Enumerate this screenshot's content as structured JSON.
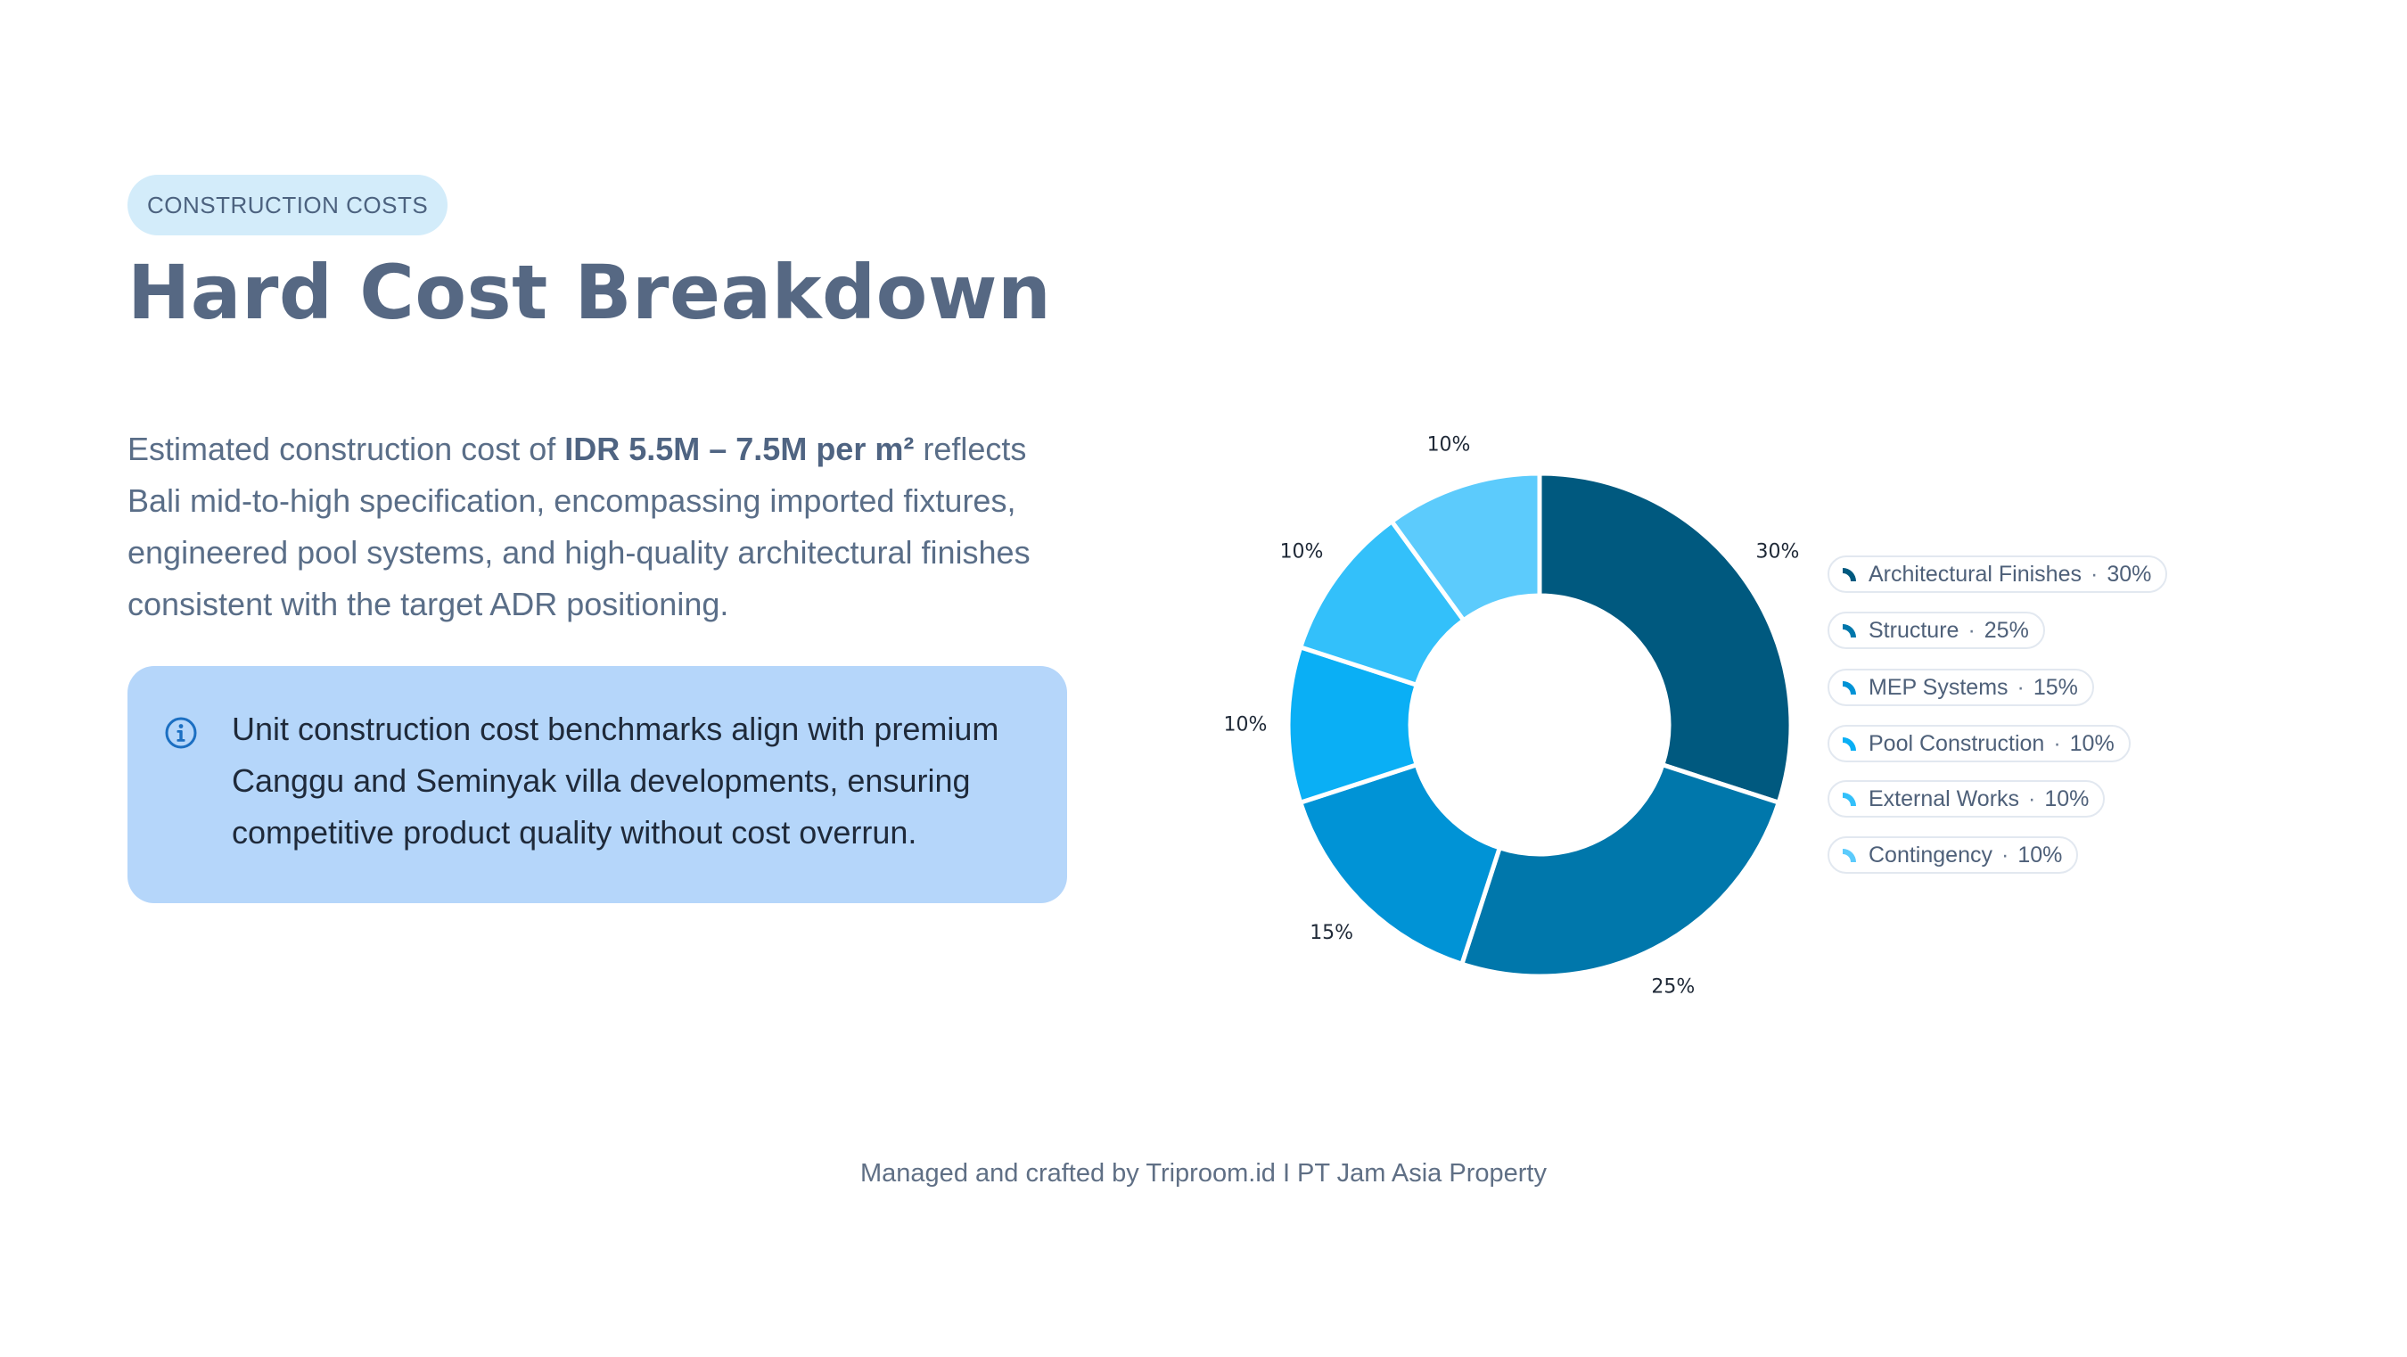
{
  "eyebrow": "CONSTRUCTION COSTS",
  "title": "Hard Cost Breakdown",
  "description": {
    "prefix": "Estimated construction cost of ",
    "highlight": "IDR 5.5M – 7.5M per m²",
    "suffix": " reflects Bali mid-to-high specification, encompassing imported fixtures, engineered pool systems, and high-quality architectural finishes consistent with the target ADR positioning."
  },
  "note": {
    "icon": "info-icon",
    "text": "Unit construction cost benchmarks align with premium Canggu and Seminyak villa developments, ensuring competitive product quality without cost overrun."
  },
  "footer": "Managed and crafted by Triproom.id I PT Jam Asia Property",
  "colors": {
    "accent_chip": "#d3ecfa",
    "note_bg": "#b5d6fa",
    "title": "#566883"
  },
  "chart_data": {
    "type": "pie",
    "variant": "donut",
    "title": "",
    "categories": [
      "Architectural Finishes",
      "Structure",
      "MEP Systems",
      "Pool Construction",
      "External Works",
      "Contingency"
    ],
    "values": [
      30,
      25,
      15,
      10,
      10,
      10
    ],
    "unit": "%",
    "data_labels": [
      "30%",
      "25%",
      "15%",
      "10%",
      "10%",
      "10%"
    ],
    "colors": [
      "#00597f",
      "#0077ab",
      "#0093d6",
      "#0aaff5",
      "#33c0fa",
      "#5ccbfc"
    ],
    "legend": {
      "placement": "right",
      "separator": "·",
      "entries": [
        {
          "label": "Architectural Finishes",
          "value": "30%"
        },
        {
          "label": "Structure",
          "value": "25%"
        },
        {
          "label": "MEP Systems",
          "value": "15%"
        },
        {
          "label": "Pool Construction",
          "value": "10%"
        },
        {
          "label": "External Works",
          "value": "10%"
        },
        {
          "label": "Contingency",
          "value": "10%"
        }
      ]
    }
  }
}
